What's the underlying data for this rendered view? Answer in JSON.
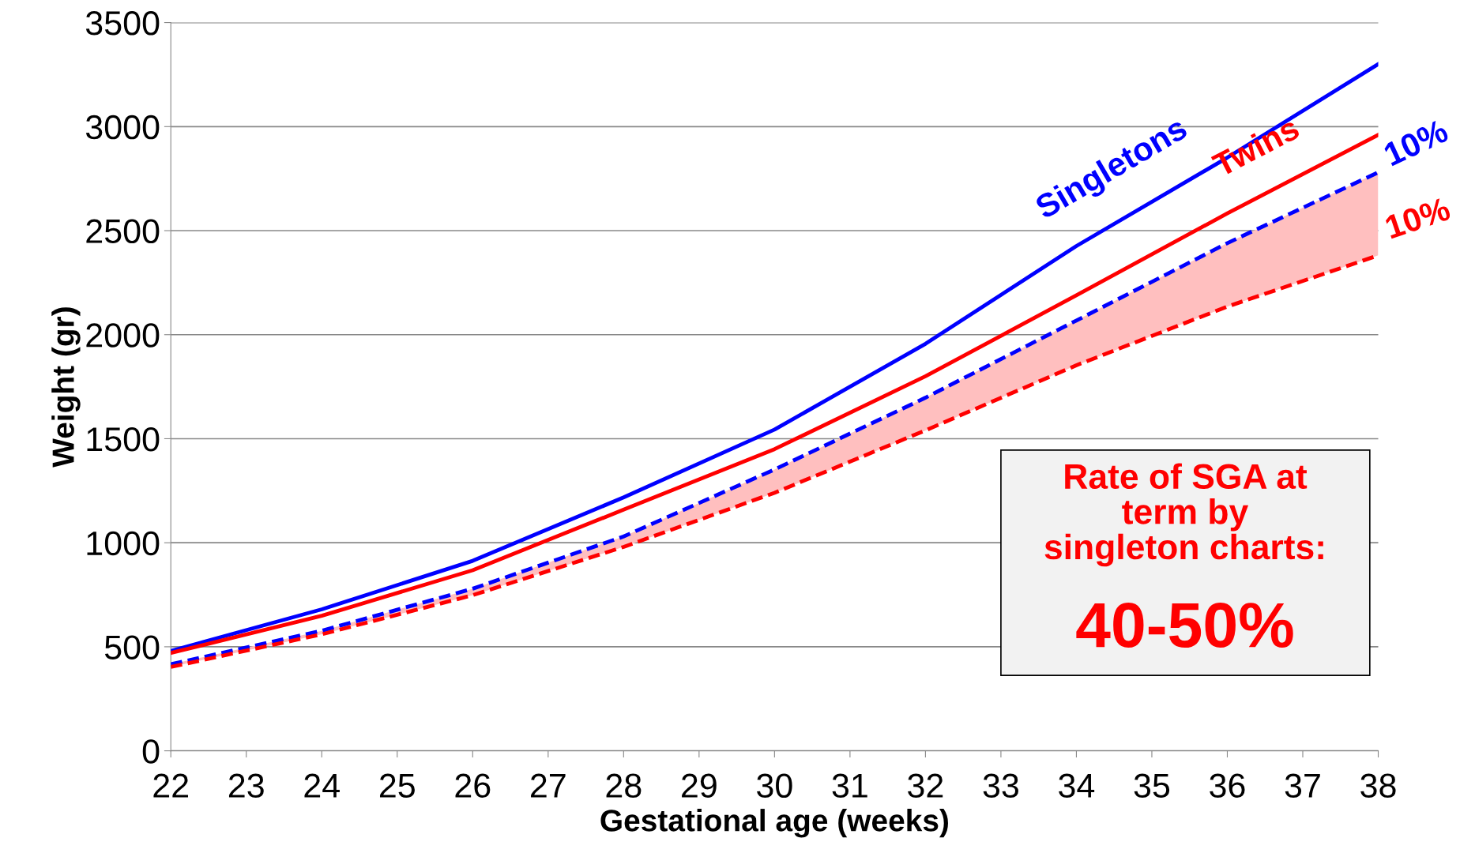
{
  "chart_data": {
    "type": "line",
    "xlabel": "Gestational age (weeks)",
    "ylabel": "Weight (gr)",
    "x": [
      22,
      24,
      26,
      28,
      30,
      32,
      34,
      36,
      38
    ],
    "series": [
      {
        "name": "Singletons",
        "color": "#0000ff",
        "line_style": "solid",
        "values": [
          480,
          680,
          913,
          1218,
          1544,
          1956,
          2426,
          2851,
          3300
        ]
      },
      {
        "name": "Twins",
        "color": "#ff0000",
        "line_style": "solid",
        "values": [
          470,
          649,
          868,
          1159,
          1450,
          1800,
          2189,
          2583,
          2960
        ]
      },
      {
        "name": "10%",
        "color": "#0000ff",
        "line_style": "dashed",
        "values": [
          416,
          577,
          779,
          1030,
          1352,
          1697,
          2068,
          2440,
          2780
        ]
      },
      {
        "name": "10%",
        "color": "#ff0000",
        "line_style": "dashed",
        "values": [
          403,
          560,
          748,
          980,
          1240,
          1540,
          1853,
          2135,
          2381
        ],
        "lower": [
          403,
          560,
          748,
          980,
          1240,
          1540,
          1853,
          2135,
          2381
        ],
        "upper": [
          416,
          577,
          779,
          1030,
          1352,
          1697,
          2068,
          2440,
          2780
        ]
      }
    ],
    "xlim": [
      22,
      38
    ],
    "xticks": [
      22,
      23,
      24,
      25,
      26,
      27,
      28,
      29,
      30,
      31,
      32,
      33,
      34,
      35,
      36,
      37,
      38
    ],
    "ylim": [
      0,
      3500
    ],
    "yticks": [
      0,
      500,
      1000,
      1500,
      2000,
      2500,
      3000,
      3500
    ],
    "grid": "y",
    "legend": false,
    "marker": "none",
    "annotations": [
      "Rate of SGA at\nterm by\nsingleton charts:",
      "40-50%"
    ]
  }
}
